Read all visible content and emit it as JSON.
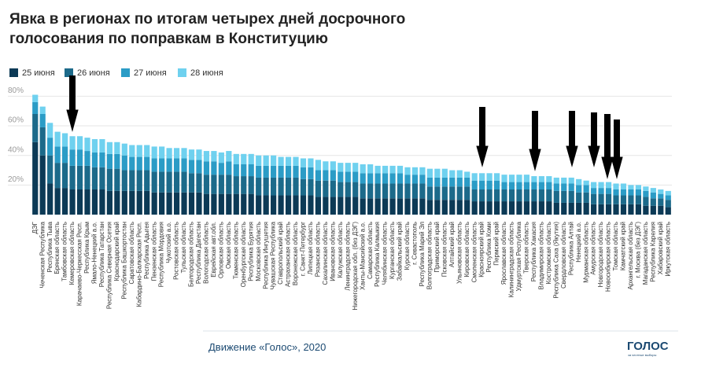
{
  "chart_data": {
    "type": "stacked_bar",
    "title": "Явка в регионах по итогам четырех дней досрочного голосования по поправкам в Конституцию",
    "source": "Движение «Голос», 2020",
    "logo": "ГОЛОС",
    "logo_subtitle": "за честные выборы",
    "categories": [
      "ДЭГ",
      "Чеченская Республика",
      "Республика Тыва",
      "Брянская область",
      "Тамбовская область",
      "Кемеровская область",
      "Карачаево-Черкесская Респ.",
      "Республика Крым",
      "Ямало-Ненецкий а.о.",
      "Республика Татарстан",
      "Республика Северная Осетия",
      "Краснодарский край",
      "Республика Башкортостан",
      "Саратовская область",
      "Кабардино-Балкарская Респ.",
      "Республика Адыгея",
      "Пензенская область",
      "Республика Мордовия",
      "Чукотский а.о.",
      "Ростовская область",
      "Тульская область",
      "Белгородская область",
      "Республика Дагестан",
      "Вологодская область",
      "Еврейская авт.обл.",
      "Орловская область",
      "Омская область",
      "Тюменская область",
      "Оренбургская область",
      "Республика Бурятия",
      "Московская область",
      "Республика Ингушетия",
      "Чувашская Республика",
      "Ставропольский край",
      "Астраханская область",
      "Воронежская область",
      "г. Санкт-Петербург",
      "Липецкая область",
      "Рязанская область",
      "Сахалинская область",
      "Ивановская область",
      "Калужская область",
      "Ленинградская область",
      "Нижегородская обл. (без ДЭГ)",
      "Ханты-Мансийский а.о.",
      "Самарская область",
      "Республика Калмыкия",
      "Челябинская область",
      "Курганская область",
      "Забайкальский край",
      "Курская область",
      "г. Севастополь",
      "Республика Марий Эл",
      "Волгоградская область",
      "Приморский край",
      "Псковская область",
      "Алтайский край",
      "Ульяновская область",
      "Кировская область",
      "Смоленская область",
      "Красноярский край",
      "Республика Коми",
      "Пермский край",
      "Ярославская область",
      "Калининградская область",
      "Удмуртская Республика",
      "Тверская область",
      "Республика Хакасия",
      "Владимирская область",
      "Костромская область",
      "Республика Саха (Якутия)",
      "Свердловская область",
      "Республика Алтай",
      "Ненецкий а.о.",
      "Мурманская область",
      "Амурская область",
      "Новгородская область",
      "Новосибирская область",
      "Томская область",
      "Камчатский край",
      "Архангельская область",
      "г. Москва (без ДЭГ)",
      "Магаданская область",
      "Республика Карелия",
      "Хабаровский край",
      "Иркутская область"
    ],
    "series": [
      {
        "name": "25 июня",
        "color": "#0c3a56",
        "values": [
          49,
          40,
          21,
          18,
          18,
          17,
          17,
          17,
          17,
          17,
          16,
          16,
          16,
          16,
          16,
          16,
          15,
          15,
          15,
          15,
          15,
          15,
          15,
          14,
          14,
          14,
          14,
          14,
          14,
          14,
          13,
          13,
          13,
          13,
          13,
          13,
          13,
          13,
          12,
          12,
          12,
          12,
          12,
          12,
          11,
          11,
          11,
          11,
          11,
          11,
          11,
          11,
          11,
          10,
          10,
          10,
          10,
          10,
          10,
          9,
          9,
          9,
          9,
          9,
          9,
          9,
          9,
          9,
          9,
          9,
          8,
          8,
          8,
          8,
          8,
          7,
          7,
          7,
          7,
          7,
          7,
          7,
          6,
          6,
          6,
          5
        ]
      },
      {
        "name": "26 июня",
        "color": "#1c6a8a",
        "values": [
          19,
          19,
          19,
          17,
          17,
          16,
          16,
          16,
          15,
          15,
          15,
          15,
          14,
          14,
          14,
          14,
          14,
          14,
          14,
          14,
          14,
          13,
          13,
          13,
          13,
          13,
          13,
          12,
          12,
          12,
          12,
          12,
          12,
          12,
          12,
          12,
          11,
          11,
          11,
          11,
          11,
          10,
          10,
          10,
          10,
          10,
          10,
          10,
          10,
          10,
          10,
          10,
          10,
          9,
          9,
          9,
          9,
          9,
          9,
          8,
          8,
          8,
          8,
          8,
          8,
          8,
          8,
          8,
          8,
          8,
          8,
          8,
          8,
          7,
          7,
          7,
          7,
          7,
          6,
          6,
          6,
          6,
          6,
          5,
          5,
          5
        ]
      },
      {
        "name": "27 июня",
        "color": "#2b9cc6",
        "values": [
          8,
          9,
          12,
          11,
          11,
          11,
          11,
          10,
          10,
          10,
          10,
          10,
          10,
          9,
          9,
          9,
          9,
          9,
          9,
          9,
          9,
          9,
          9,
          9,
          9,
          8,
          9,
          8,
          8,
          8,
          8,
          8,
          8,
          8,
          8,
          8,
          8,
          8,
          7,
          7,
          7,
          7,
          7,
          7,
          7,
          7,
          7,
          7,
          7,
          7,
          6,
          6,
          6,
          6,
          6,
          6,
          6,
          6,
          6,
          6,
          6,
          6,
          6,
          5,
          5,
          5,
          5,
          5,
          5,
          5,
          5,
          5,
          5,
          5,
          5,
          4,
          4,
          4,
          4,
          4,
          4,
          4,
          4,
          4,
          3,
          3
        ]
      },
      {
        "name": "28 июня",
        "color": "#6fd1ef",
        "values": [
          5,
          5,
          10,
          10,
          9,
          9,
          9,
          9,
          9,
          9,
          8,
          8,
          8,
          8,
          8,
          8,
          8,
          8,
          7,
          7,
          7,
          7,
          7,
          7,
          7,
          7,
          7,
          7,
          7,
          7,
          7,
          7,
          7,
          6,
          6,
          6,
          6,
          6,
          7,
          6,
          6,
          6,
          6,
          6,
          6,
          6,
          5,
          5,
          5,
          5,
          5,
          5,
          5,
          6,
          6,
          6,
          5,
          5,
          4,
          5,
          5,
          5,
          5,
          5,
          5,
          5,
          5,
          4,
          4,
          4,
          4,
          4,
          4,
          4,
          3,
          4,
          4,
          4,
          4,
          4,
          3,
          3,
          3,
          3,
          3,
          3
        ]
      }
    ],
    "ylim": [
      0,
      85
    ],
    "yticks": [
      {
        "value": 20,
        "label": "20%"
      },
      {
        "value": 40,
        "label": "40%"
      },
      {
        "value": 60,
        "label": "60%"
      },
      {
        "value": 80,
        "label": "80%"
      }
    ],
    "grid": true
  }
}
